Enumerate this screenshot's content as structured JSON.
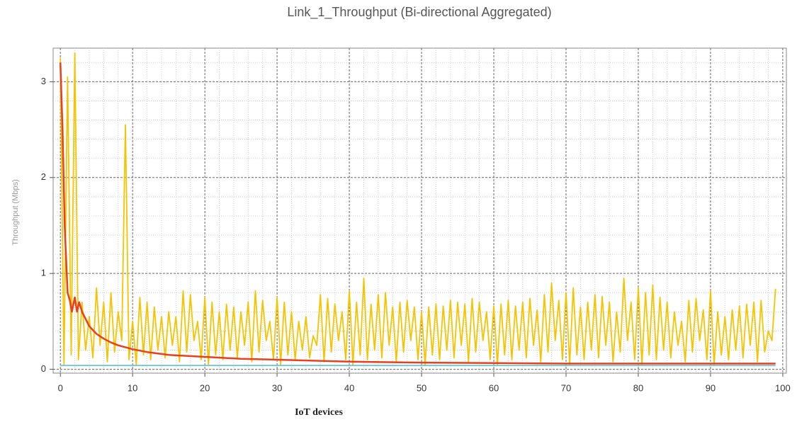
{
  "chart_data": {
    "type": "line",
    "title": "Link_1_Throughput (Bi-directional Aggregated)",
    "x_label": "IoT devices",
    "y_label": "Throughput (Mbps)",
    "xlim": [
      -1,
      100.5
    ],
    "ylim": [
      -0.04,
      3.35
    ],
    "xticks": [
      0,
      10,
      20,
      30,
      40,
      50,
      60,
      70,
      80,
      90,
      100
    ],
    "yticks": [
      0,
      1,
      2,
      3
    ],
    "grid": true,
    "series": [
      {
        "color": "#f5c400",
        "x": [
          0,
          0.5,
          1,
          1.5,
          2,
          2.5,
          3,
          3.5,
          4,
          4.5,
          5,
          5.5,
          6,
          6.5,
          7,
          7.5,
          8,
          8.5,
          9,
          9.5,
          10,
          10.5,
          11,
          11.5,
          12,
          12.5,
          13,
          13.5,
          14,
          14.5,
          15,
          15.5,
          16,
          16.5,
          17,
          17.5,
          18,
          18.5,
          19,
          19.5,
          20,
          20.5,
          21,
          21.5,
          22,
          22.5,
          23,
          23.5,
          24,
          24.5,
          25,
          25.5,
          26,
          26.5,
          27,
          27.5,
          28,
          28.5,
          29,
          29.5,
          30,
          30.5,
          31,
          31.5,
          32,
          32.5,
          33,
          33.5,
          34,
          34.5,
          35,
          35.5,
          36,
          36.5,
          37,
          37.5,
          38,
          38.5,
          39,
          39.5,
          40,
          40.5,
          41,
          41.5,
          42,
          42.5,
          43,
          43.5,
          44,
          44.5,
          45,
          45.5,
          46,
          46.5,
          47,
          47.5,
          48,
          48.5,
          49,
          49.5,
          50,
          50.5,
          51,
          51.5,
          52,
          52.5,
          53,
          53.5,
          54,
          54.5,
          55,
          55.5,
          56,
          56.5,
          57,
          57.5,
          58,
          58.5,
          59,
          59.5,
          60,
          60.5,
          61,
          61.5,
          62,
          62.5,
          63,
          63.5,
          64,
          64.5,
          65,
          65.5,
          66,
          66.5,
          67,
          67.5,
          68,
          68.5,
          69,
          69.5,
          70,
          70.5,
          71,
          71.5,
          72,
          72.5,
          73,
          73.5,
          74,
          74.5,
          75,
          75.5,
          76,
          76.5,
          77,
          77.5,
          78,
          78.5,
          79,
          79.5,
          80,
          80.5,
          81,
          81.5,
          82,
          82.5,
          83,
          83.5,
          84,
          84.5,
          85,
          85.5,
          86,
          86.5,
          87,
          87.5,
          88,
          88.5,
          89,
          89.5,
          90,
          90.5,
          91,
          91.5,
          92,
          92.5,
          93,
          93.5,
          94,
          94.5,
          95,
          95.5,
          96,
          96.5,
          97,
          97.5,
          98,
          98.5,
          99
        ],
        "values": [
          3.25,
          0.05,
          3.05,
          0.15,
          3.3,
          0.1,
          0.7,
          0.2,
          0.55,
          0.12,
          0.85,
          0.25,
          0.7,
          0.08,
          0.8,
          0.18,
          0.6,
          0.3,
          2.55,
          0.1,
          0.5,
          0.05,
          0.75,
          0.15,
          0.7,
          0.1,
          0.65,
          0.2,
          0.55,
          0.12,
          0.6,
          0.25,
          0.55,
          0.08,
          0.82,
          0.18,
          0.78,
          0.3,
          0.5,
          0.1,
          0.75,
          0.05,
          0.7,
          0.15,
          0.6,
          0.1,
          0.68,
          0.2,
          0.65,
          0.12,
          0.6,
          0.25,
          0.7,
          0.08,
          0.82,
          0.18,
          0.72,
          0.3,
          0.5,
          0.1,
          0.75,
          0.05,
          0.7,
          0.15,
          0.6,
          0.1,
          0.5,
          0.2,
          0.55,
          0.12,
          0.35,
          0.25,
          0.78,
          0.08,
          0.74,
          0.18,
          0.68,
          0.3,
          0.6,
          0.1,
          0.82,
          0.05,
          0.7,
          0.15,
          0.95,
          0.1,
          0.68,
          0.2,
          0.78,
          0.12,
          0.8,
          0.25,
          0.65,
          0.08,
          0.7,
          0.18,
          0.72,
          0.3,
          0.65,
          0.1,
          0.6,
          0.05,
          0.65,
          0.15,
          0.68,
          0.1,
          0.66,
          0.2,
          0.72,
          0.12,
          0.7,
          0.25,
          0.68,
          0.08,
          0.74,
          0.18,
          0.7,
          0.3,
          0.6,
          0.1,
          0.66,
          0.05,
          0.68,
          0.15,
          0.72,
          0.1,
          0.66,
          0.2,
          0.7,
          0.12,
          0.74,
          0.25,
          0.62,
          0.08,
          0.78,
          0.18,
          0.9,
          0.3,
          0.72,
          0.1,
          0.8,
          0.05,
          0.85,
          0.15,
          0.65,
          0.1,
          0.7,
          0.2,
          0.78,
          0.12,
          0.76,
          0.25,
          0.7,
          0.08,
          0.6,
          0.18,
          0.95,
          0.3,
          0.7,
          0.1,
          0.85,
          0.05,
          0.8,
          0.15,
          0.88,
          0.1,
          0.75,
          0.2,
          0.7,
          0.12,
          0.6,
          0.25,
          0.5,
          0.08,
          0.72,
          0.18,
          0.74,
          0.3,
          0.62,
          0.1,
          0.82,
          0.05,
          0.6,
          0.15,
          0.55,
          0.1,
          0.62,
          0.2,
          0.66,
          0.12,
          0.68,
          0.25,
          0.7,
          0.08,
          0.72,
          0.18,
          0.4,
          0.3,
          0.84
        ]
      },
      {
        "color": "#6cc6d6",
        "x": [
          0,
          99
        ],
        "values": [
          0.04,
          0.04
        ]
      },
      {
        "color": "#e8401c",
        "x": [
          0,
          0.3,
          0.6,
          1,
          1.3,
          1.6,
          2,
          2.3,
          2.6,
          3,
          4,
          5,
          6,
          7,
          8,
          10,
          12,
          15,
          20,
          25,
          30,
          40,
          50,
          60,
          70,
          80,
          90,
          99
        ],
        "values": [
          3.2,
          2.5,
          1.5,
          0.8,
          0.72,
          0.6,
          0.75,
          0.6,
          0.7,
          0.6,
          0.45,
          0.37,
          0.32,
          0.28,
          0.25,
          0.21,
          0.18,
          0.15,
          0.13,
          0.11,
          0.1,
          0.08,
          0.07,
          0.065,
          0.06,
          0.06,
          0.06,
          0.06
        ]
      }
    ]
  }
}
